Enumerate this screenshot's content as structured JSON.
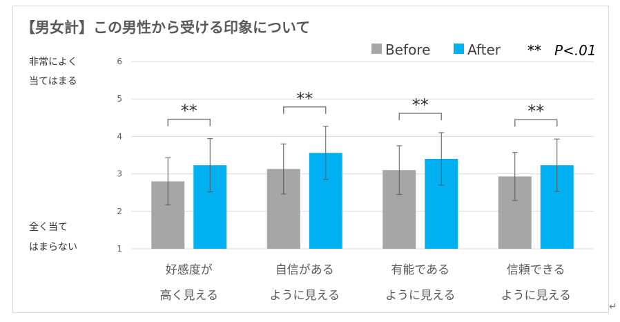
{
  "chart_data": {
    "type": "bar",
    "title": "【男女計】この男性から受ける印象について",
    "categories": [
      [
        "好感度が",
        "高く見える"
      ],
      [
        "自信がある",
        "ように見える"
      ],
      [
        "有能である",
        "ように見える"
      ],
      [
        "信頼できる",
        "ように見える"
      ]
    ],
    "series": [
      {
        "name": "Before",
        "color": "#a6a6a6",
        "values": [
          2.8,
          3.13,
          3.1,
          2.93
        ],
        "error": [
          0.63,
          0.67,
          0.65,
          0.64
        ]
      },
      {
        "name": "After",
        "color": "#00b0f0",
        "values": [
          3.23,
          3.56,
          3.4,
          3.23
        ],
        "error": [
          0.71,
          0.71,
          0.7,
          0.7
        ]
      }
    ],
    "ylim": [
      1,
      6
    ],
    "yticks": [
      1,
      2,
      3,
      4,
      5,
      6
    ],
    "ylabel_top": [
      "非常によく",
      "当てはまる"
    ],
    "ylabel_bottom": [
      "全く当て",
      "はまらない"
    ],
    "significance": {
      "marker": "**",
      "label_stars": "**",
      "label_p": "P<.01",
      "pairs": [
        0,
        1,
        2,
        3
      ]
    },
    "grid": true
  },
  "page": {
    "return_mark": "↵"
  }
}
